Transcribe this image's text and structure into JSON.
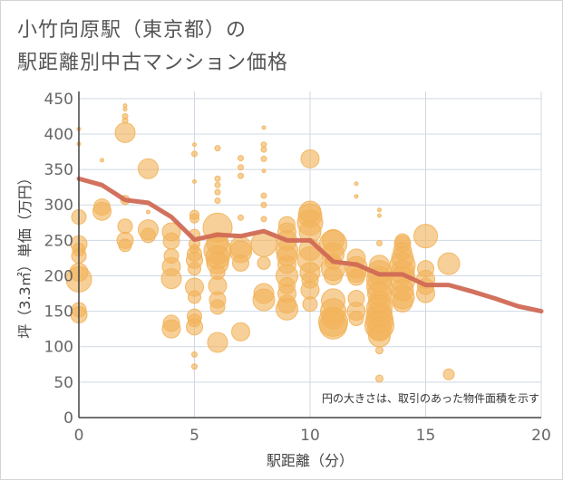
{
  "title_line1": "小竹向原駅（東京都）の",
  "title_line2": "駅距離別中古マンション価格",
  "colors": {
    "bubble": "#f2b35a",
    "line": "#d06a55",
    "grid": "#cfd8e3",
    "axis": "#444444"
  },
  "chart_data": {
    "type": "scatter",
    "xlabel": "駅距離（分）",
    "ylabel": "坪（3.3㎡）単価（万円）",
    "xlim": [
      0,
      20
    ],
    "ylim": [
      0,
      460
    ],
    "xticks": [
      "0",
      "5",
      "10",
      "15",
      "20"
    ],
    "yticks": [
      "0",
      "50",
      "100",
      "150",
      "200",
      "250",
      "300",
      "350",
      "400",
      "450"
    ],
    "note": "円の大きさは、取引のあった物件面積を示す",
    "line_series": {
      "x": [
        0,
        1,
        2,
        3,
        4,
        5,
        6,
        7,
        8,
        9,
        10,
        11,
        12,
        13,
        14,
        15,
        16,
        17,
        18,
        19,
        20
      ],
      "y": [
        337,
        328,
        307,
        303,
        283,
        251,
        258,
        256,
        263,
        250,
        250,
        220,
        216,
        202,
        202,
        187,
        187,
        178,
        168,
        157,
        150
      ]
    },
    "bubbles": [
      [
        0,
        407,
        2
      ],
      [
        0,
        386,
        2
      ],
      [
        0,
        283,
        8
      ],
      [
        0,
        245,
        9
      ],
      [
        0,
        237,
        7
      ],
      [
        0,
        228,
        8
      ],
      [
        0,
        205,
        10
      ],
      [
        0,
        195,
        14
      ],
      [
        0,
        152,
        8
      ],
      [
        0,
        145,
        9
      ],
      [
        1,
        363,
        2
      ],
      [
        1,
        297,
        9
      ],
      [
        1,
        291,
        10
      ],
      [
        2,
        440,
        2
      ],
      [
        2,
        435,
        2
      ],
      [
        2,
        425,
        3
      ],
      [
        2,
        419,
        3
      ],
      [
        2,
        402,
        11
      ],
      [
        2,
        307,
        5
      ],
      [
        2,
        270,
        8
      ],
      [
        2,
        250,
        9
      ],
      [
        2,
        243,
        7
      ],
      [
        3,
        351,
        11
      ],
      [
        3,
        290,
        2
      ],
      [
        3,
        265,
        11
      ],
      [
        3,
        257,
        8
      ],
      [
        4,
        262,
        10
      ],
      [
        4,
        249,
        9
      ],
      [
        4,
        228,
        8
      ],
      [
        4,
        213,
        10
      ],
      [
        4,
        196,
        11
      ],
      [
        4,
        133,
        9
      ],
      [
        4,
        125,
        10
      ],
      [
        5,
        385,
        2
      ],
      [
        5,
        372,
        3
      ],
      [
        5,
        333,
        2
      ],
      [
        5,
        286,
        5
      ],
      [
        5,
        281,
        5
      ],
      [
        5,
        258,
        6
      ],
      [
        5,
        245,
        6
      ],
      [
        5,
        238,
        5
      ],
      [
        5,
        231,
        8
      ],
      [
        5,
        222,
        9
      ],
      [
        5,
        210,
        7
      ],
      [
        5,
        184,
        10
      ],
      [
        5,
        170,
        7
      ],
      [
        5,
        143,
        8
      ],
      [
        5,
        137,
        7
      ],
      [
        5,
        128,
        9
      ],
      [
        5,
        89,
        3
      ],
      [
        5,
        72,
        3
      ],
      [
        6,
        380,
        3
      ],
      [
        6,
        337,
        3
      ],
      [
        6,
        328,
        3
      ],
      [
        6,
        318,
        3
      ],
      [
        6,
        306,
        3
      ],
      [
        6,
        268,
        16
      ],
      [
        6,
        246,
        12
      ],
      [
        6,
        236,
        15
      ],
      [
        6,
        226,
        13
      ],
      [
        6,
        218,
        12
      ],
      [
        6,
        205,
        8
      ],
      [
        6,
        186,
        10
      ],
      [
        6,
        166,
        9
      ],
      [
        6,
        156,
        8
      ],
      [
        6,
        106,
        11
      ],
      [
        7,
        366,
        3
      ],
      [
        7,
        353,
        3
      ],
      [
        7,
        341,
        3
      ],
      [
        7,
        282,
        3
      ],
      [
        7,
        240,
        12
      ],
      [
        7,
        234,
        12
      ],
      [
        7,
        218,
        9
      ],
      [
        7,
        121,
        10
      ],
      [
        8,
        409,
        2
      ],
      [
        8,
        385,
        3
      ],
      [
        8,
        378,
        3
      ],
      [
        8,
        365,
        3
      ],
      [
        8,
        348,
        2
      ],
      [
        8,
        313,
        3
      ],
      [
        8,
        300,
        3
      ],
      [
        8,
        280,
        3
      ],
      [
        8,
        245,
        14
      ],
      [
        8,
        218,
        7
      ],
      [
        8,
        175,
        11
      ],
      [
        8,
        166,
        12
      ],
      [
        9,
        272,
        9
      ],
      [
        9,
        262,
        10
      ],
      [
        9,
        250,
        11
      ],
      [
        9,
        236,
        12
      ],
      [
        9,
        228,
        11
      ],
      [
        9,
        216,
        10
      ],
      [
        9,
        200,
        12
      ],
      [
        9,
        186,
        9
      ],
      [
        9,
        175,
        10
      ],
      [
        9,
        160,
        10
      ],
      [
        9,
        153,
        12
      ],
      [
        10,
        365,
        10
      ],
      [
        10,
        290,
        12
      ],
      [
        10,
        285,
        13
      ],
      [
        10,
        275,
        14
      ],
      [
        10,
        262,
        12
      ],
      [
        10,
        237,
        12
      ],
      [
        10,
        223,
        14
      ],
      [
        10,
        205,
        11
      ],
      [
        10,
        194,
        9
      ],
      [
        10,
        180,
        10
      ],
      [
        10,
        160,
        8
      ],
      [
        11,
        250,
        12
      ],
      [
        11,
        245,
        15
      ],
      [
        11,
        231,
        12
      ],
      [
        11,
        220,
        9
      ],
      [
        11,
        210,
        13
      ],
      [
        11,
        200,
        10
      ],
      [
        11,
        165,
        13
      ],
      [
        11,
        150,
        14
      ],
      [
        11,
        140,
        12
      ],
      [
        11,
        135,
        16
      ],
      [
        11,
        130,
        15
      ],
      [
        12,
        330,
        2
      ],
      [
        12,
        312,
        2
      ],
      [
        12,
        225,
        10
      ],
      [
        12,
        212,
        12
      ],
      [
        12,
        205,
        11
      ],
      [
        12,
        198,
        9
      ],
      [
        12,
        168,
        9
      ],
      [
        12,
        150,
        10
      ],
      [
        12,
        140,
        8
      ],
      [
        13,
        293,
        2
      ],
      [
        13,
        285,
        2
      ],
      [
        13,
        246,
        3
      ],
      [
        13,
        215,
        11
      ],
      [
        13,
        205,
        13
      ],
      [
        13,
        195,
        14
      ],
      [
        13,
        185,
        14
      ],
      [
        13,
        175,
        13
      ],
      [
        13,
        163,
        12
      ],
      [
        13,
        155,
        14
      ],
      [
        13,
        145,
        14
      ],
      [
        13,
        138,
        15
      ],
      [
        13,
        130,
        16
      ],
      [
        13,
        125,
        13
      ],
      [
        13,
        115,
        12
      ],
      [
        13,
        95,
        4
      ],
      [
        13,
        55,
        4
      ],
      [
        14,
        249,
        8
      ],
      [
        14,
        245,
        9
      ],
      [
        14,
        235,
        10
      ],
      [
        14,
        225,
        12
      ],
      [
        14,
        215,
        14
      ],
      [
        14,
        205,
        13
      ],
      [
        14,
        195,
        14
      ],
      [
        14,
        180,
        12
      ],
      [
        14,
        170,
        13
      ],
      [
        14,
        163,
        11
      ],
      [
        15,
        256,
        13
      ],
      [
        15,
        210,
        9
      ],
      [
        15,
        195,
        10
      ],
      [
        15,
        185,
        9
      ],
      [
        15,
        175,
        10
      ],
      [
        16,
        217,
        12
      ],
      [
        16,
        61,
        6
      ]
    ]
  }
}
